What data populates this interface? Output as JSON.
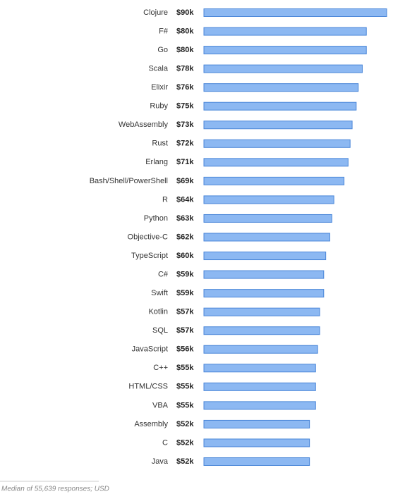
{
  "chart_data": {
    "type": "bar",
    "orientation": "horizontal",
    "color": "#8cb8f2",
    "categories": [
      "Clojure",
      "F#",
      "Go",
      "Scala",
      "Elixir",
      "Ruby",
      "WebAssembly",
      "Rust",
      "Erlang",
      "Bash/Shell/PowerShell",
      "R",
      "Python",
      "Objective-C",
      "TypeScript",
      "C#",
      "Swift",
      "Kotlin",
      "SQL",
      "JavaScript",
      "C++",
      "HTML/CSS",
      "VBA",
      "Assembly",
      "C",
      "Java"
    ],
    "values": [
      90,
      80,
      80,
      78,
      76,
      75,
      73,
      72,
      71,
      69,
      64,
      63,
      62,
      60,
      59,
      59,
      57,
      57,
      56,
      55,
      55,
      55,
      52,
      52,
      52
    ],
    "value_labels": [
      "$90k",
      "$80k",
      "$80k",
      "$78k",
      "$76k",
      "$75k",
      "$73k",
      "$72k",
      "$71k",
      "$69k",
      "$64k",
      "$63k",
      "$62k",
      "$60k",
      "$59k",
      "$59k",
      "$57k",
      "$57k",
      "$56k",
      "$55k",
      "$55k",
      "$55k",
      "$52k",
      "$52k",
      "$52k"
    ],
    "note": "Median of 55,639 responses; USD"
  }
}
